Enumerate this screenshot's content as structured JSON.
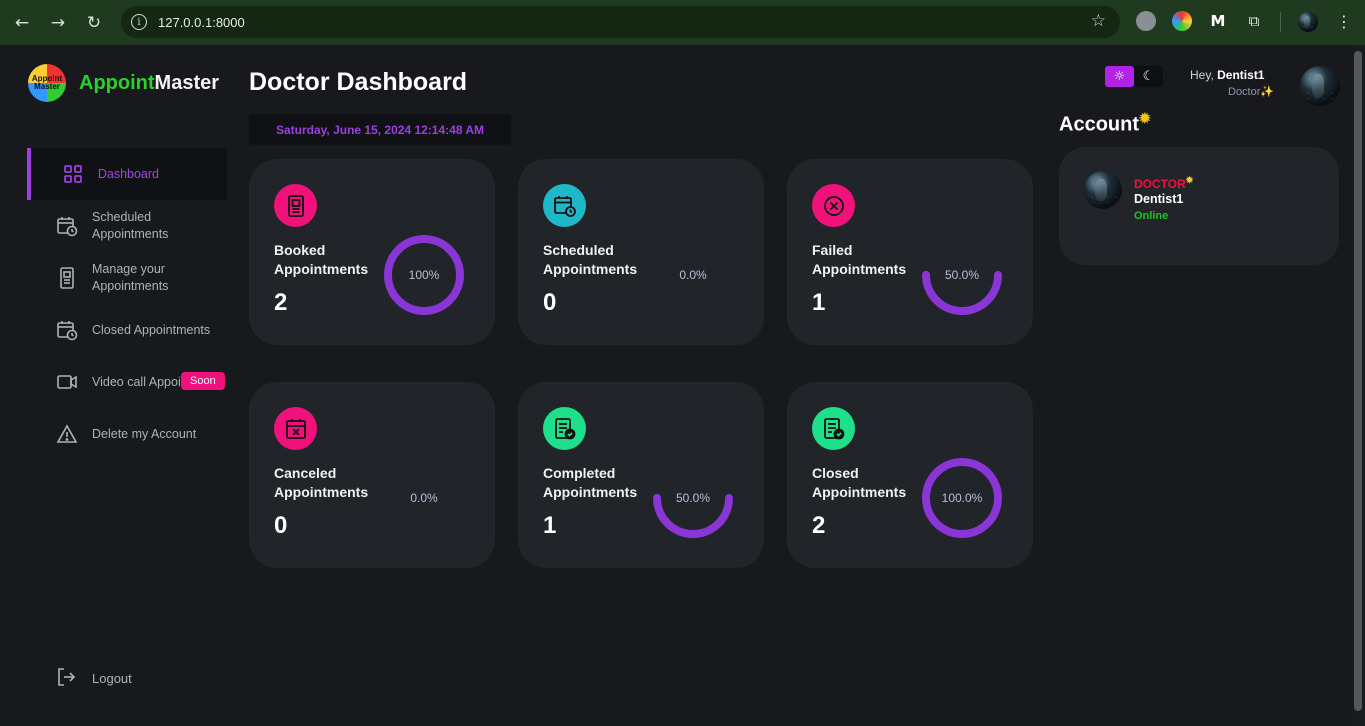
{
  "browser": {
    "url": "127.0.0.1:8000"
  },
  "brand": {
    "logo_text": "Appoint Master",
    "name_part1": "Appoint",
    "name_part2": "Master"
  },
  "sidebar": {
    "items": [
      {
        "label": "Dashboard",
        "icon": "grid-icon",
        "active": true
      },
      {
        "label": "Scheduled Appointments",
        "icon": "calendar-clock-icon"
      },
      {
        "label": "Manage your Appointments",
        "icon": "document-icon"
      },
      {
        "label": "Closed Appointments",
        "icon": "calendar-clock-icon"
      },
      {
        "label": "Video call Appointment",
        "icon": "video-icon",
        "badge": "Soon"
      },
      {
        "label": "Delete my Account",
        "icon": "warning-icon"
      }
    ],
    "logout_label": "Logout"
  },
  "header": {
    "title": "Doctor Dashboard",
    "datetime": "Saturday, June 15, 2024 12:14:48 AM",
    "greeting": "Hey,",
    "username": "Dentist1",
    "role": "Doctor✨"
  },
  "stats": [
    {
      "label": "Booked Appointments",
      "count": "2",
      "percent": 100,
      "percent_label": "100%",
      "icon_color": "#f0127a",
      "icon": "document-icon"
    },
    {
      "label": "Scheduled Appointments",
      "count": "0",
      "percent": 0,
      "percent_label": "0.0%",
      "icon_color": "#1fb8c9",
      "icon": "calendar-clock-icon"
    },
    {
      "label": "Failed Appointments",
      "count": "1",
      "percent": 50,
      "percent_label": "50.0%",
      "icon_color": "#f0127a",
      "icon": "x-circle-icon"
    },
    {
      "label": "Canceled Appointments",
      "count": "0",
      "percent": 0,
      "percent_label": "0.0%",
      "icon_color": "#f0127a",
      "icon": "calendar-x-icon"
    },
    {
      "label": "Completed Appointments",
      "count": "1",
      "percent": 50,
      "percent_label": "50.0%",
      "icon_color": "#1ee08a",
      "icon": "document-check-icon"
    },
    {
      "label": "Closed Appointments",
      "count": "2",
      "percent": 100,
      "percent_label": "100.0%",
      "icon_color": "#1ee08a",
      "icon": "document-check-icon"
    }
  ],
  "account": {
    "title": "Account",
    "type": "DOCTOR",
    "name": "Dentist1",
    "status": "Online"
  },
  "colors": {
    "accent": "#9b3fe0",
    "ring": "#8a35d6",
    "online": "#24c024",
    "danger": "#f0123c"
  }
}
